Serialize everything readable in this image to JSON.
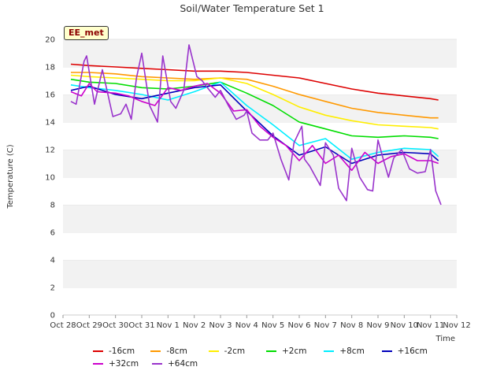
{
  "badge": "EE_met",
  "colors": {
    "-16cm": "#dd0000",
    "-8cm": "#ff9900",
    "-2cm": "#ffee00",
    "+2cm": "#00dd00",
    "+8cm": "#00eeff",
    "+16cm": "#0000bb",
    "+32cm": "#cc00cc",
    "+64cm": "#9933cc"
  },
  "chart_data": {
    "type": "line",
    "title": "Soil/Water Temperature Set 1",
    "xlabel": "Time",
    "ylabel": "Temperature (C)",
    "x_ticks": [
      "Oct 28",
      "Oct 29",
      "Oct 30",
      "Oct 31",
      "Nov 1",
      "Nov 2",
      "Nov 3",
      "Nov 4",
      "Nov 5",
      "Nov 6",
      "Nov 7",
      "Nov 8",
      "Nov 9",
      "Nov 10",
      "Nov 11",
      "Nov 12"
    ],
    "xlim": [
      0,
      15
    ],
    "ylim": [
      0,
      20
    ],
    "y_ticks": [
      0,
      2,
      4,
      6,
      8,
      10,
      12,
      14,
      16,
      18,
      20
    ],
    "grid": "horizontal alternating bands",
    "legend_position": "bottom",
    "series": [
      {
        "name": "-16cm",
        "x": [
          0.3,
          1,
          2,
          3,
          4,
          5,
          6,
          7,
          8,
          9,
          10,
          11,
          12,
          13,
          14,
          14.3
        ],
        "y": [
          18.2,
          18.1,
          18.0,
          17.9,
          17.8,
          17.7,
          17.7,
          17.6,
          17.4,
          17.2,
          16.8,
          16.4,
          16.1,
          15.9,
          15.7,
          15.6
        ]
      },
      {
        "name": "-8cm",
        "x": [
          0.3,
          1,
          2,
          3,
          4,
          5,
          6,
          7,
          8,
          9,
          10,
          11,
          12,
          13,
          14,
          14.3
        ],
        "y": [
          17.6,
          17.6,
          17.5,
          17.3,
          17.2,
          17.1,
          17.2,
          17.1,
          16.6,
          16.0,
          15.5,
          15.0,
          14.7,
          14.5,
          14.3,
          14.3
        ]
      },
      {
        "name": "-2cm",
        "x": [
          0.3,
          1,
          2,
          3,
          4,
          5,
          6,
          7,
          8,
          9,
          10,
          11,
          12,
          13,
          14,
          14.3
        ],
        "y": [
          17.4,
          17.3,
          17.2,
          17.1,
          17.0,
          17.0,
          17.2,
          16.8,
          16.0,
          15.1,
          14.5,
          14.1,
          13.8,
          13.7,
          13.6,
          13.5
        ]
      },
      {
        "name": "+2cm",
        "x": [
          0.3,
          1,
          2,
          3,
          4,
          5,
          6,
          7,
          8,
          9,
          10,
          11,
          12,
          13,
          14,
          14.3
        ],
        "y": [
          17.1,
          16.9,
          16.8,
          16.5,
          16.4,
          16.6,
          16.9,
          16.1,
          15.2,
          14.0,
          13.5,
          13.0,
          12.9,
          13.0,
          12.9,
          12.8
        ]
      },
      {
        "name": "+8cm",
        "x": [
          0.3,
          1,
          2,
          3,
          4,
          5,
          6,
          7,
          8,
          9,
          10,
          11,
          12,
          13,
          14,
          14.3
        ],
        "y": [
          16.7,
          16.5,
          16.3,
          16.0,
          15.6,
          16.2,
          16.9,
          15.2,
          13.8,
          12.3,
          12.8,
          11.3,
          11.8,
          12.1,
          12.0,
          11.5
        ]
      },
      {
        "name": "+16cm",
        "x": [
          0.3,
          1,
          2,
          3,
          4,
          5,
          6,
          7,
          8,
          9,
          10,
          11,
          12,
          13,
          14,
          14.3
        ],
        "y": [
          16.3,
          16.6,
          16.0,
          15.7,
          16.1,
          16.5,
          16.7,
          14.8,
          13.0,
          11.6,
          12.2,
          11.0,
          11.6,
          11.8,
          11.7,
          11.2
        ]
      },
      {
        "name": "+32cm",
        "x": [
          0.3,
          0.7,
          1.0,
          1.3,
          2,
          2.5,
          3,
          3.5,
          4,
          4.5,
          5,
          5.5,
          6,
          6.5,
          7,
          7.5,
          8,
          8.5,
          9,
          9.5,
          10,
          10.5,
          11,
          11.5,
          12,
          12.5,
          13,
          13.5,
          14,
          14.3
        ],
        "y": [
          16.2,
          15.9,
          16.8,
          16.2,
          16.1,
          15.9,
          15.5,
          15.2,
          16.5,
          16.3,
          16.6,
          16.8,
          16.1,
          14.8,
          14.9,
          13.7,
          12.9,
          12.3,
          11.2,
          12.3,
          11.0,
          11.6,
          10.5,
          11.8,
          11.0,
          11.5,
          11.7,
          11.2,
          11.2,
          11.0
        ]
      },
      {
        "name": "+64cm",
        "x": [
          0.3,
          0.5,
          0.8,
          0.9,
          1.2,
          1.5,
          1.9,
          2.2,
          2.4,
          2.6,
          2.8,
          3.0,
          3.3,
          3.6,
          3.8,
          4.1,
          4.3,
          4.6,
          4.8,
          5.1,
          5.3,
          5.5,
          5.8,
          6.0,
          6.3,
          6.6,
          6.9,
          7.0,
          7.2,
          7.5,
          7.8,
          8.0,
          8.3,
          8.6,
          8.8,
          9.1,
          9.2,
          9.4,
          9.6,
          9.8,
          10.0,
          10.3,
          10.5,
          10.8,
          11.0,
          11.3,
          11.6,
          11.8,
          12.0,
          12.2,
          12.4,
          12.6,
          12.9,
          13.2,
          13.5,
          13.8,
          14.0,
          14.2,
          14.4
        ],
        "y": [
          15.5,
          15.3,
          18.4,
          18.8,
          15.3,
          17.8,
          14.4,
          14.6,
          15.3,
          14.2,
          17.2,
          19.0,
          15.2,
          14.0,
          18.8,
          15.5,
          15.0,
          16.3,
          19.6,
          17.3,
          17.0,
          16.5,
          15.8,
          16.3,
          15.2,
          14.2,
          14.5,
          14.8,
          13.2,
          12.7,
          12.7,
          13.2,
          11.3,
          9.8,
          12.5,
          13.7,
          11.3,
          10.8,
          10.1,
          9.4,
          12.5,
          11.6,
          9.2,
          8.3,
          12.1,
          10.0,
          9.1,
          9.0,
          12.7,
          11.3,
          10.0,
          11.4,
          12.0,
          10.6,
          10.3,
          10.4,
          12.0,
          9.0,
          8.0
        ]
      }
    ]
  }
}
